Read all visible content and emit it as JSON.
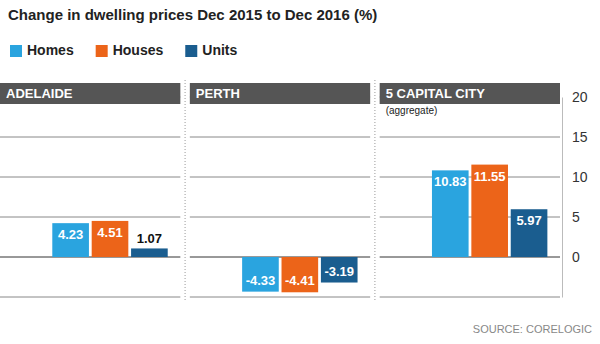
{
  "chart_data": {
    "type": "bar",
    "title": "Change in dwelling prices Dec 2015 to Dec 2016 (%)",
    "categories": [
      "ADELAIDE",
      "PERTH",
      "5 CAPITAL CITY"
    ],
    "series": [
      {
        "name": "Homes",
        "color": "#2aa4df",
        "values": [
          4.23,
          -4.33,
          10.83
        ]
      },
      {
        "name": "Houses",
        "color": "#ec6419",
        "values": [
          4.51,
          -4.41,
          11.55
        ]
      },
      {
        "name": "Units",
        "color": "#1a5d8f",
        "values": [
          1.07,
          -3.19,
          5.97
        ]
      }
    ],
    "annotations": [
      {
        "text": "(aggregate)",
        "category": "5 CAPITAL CITY"
      }
    ],
    "source": "SOURCE: CORELOGIC",
    "ylim": [
      -5,
      20
    ],
    "yticks": [
      0,
      5,
      10,
      15,
      20
    ],
    "grid": true,
    "legend": "top-left",
    "data_labels": true
  }
}
